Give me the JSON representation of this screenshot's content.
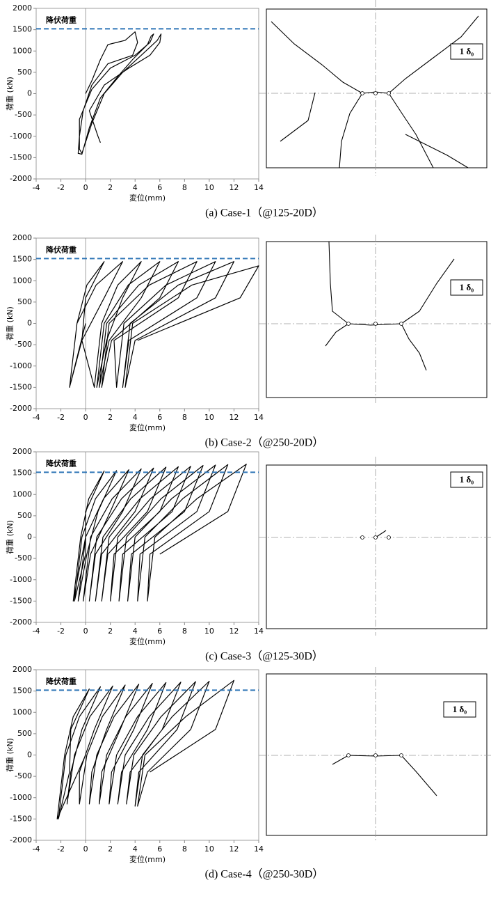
{
  "chart_data": [
    {
      "type": "line",
      "caption": "(a) Case-1（@125-20D）",
      "xlabel": "変位(mm)",
      "ylabel": "荷重 (kN)",
      "xlim": [
        -4,
        14
      ],
      "ylim": [
        -2000,
        2000
      ],
      "xticks": [
        -4,
        -2,
        0,
        2,
        4,
        6,
        8,
        10,
        12,
        14
      ],
      "yticks": [
        -2000,
        -1500,
        -1000,
        -500,
        0,
        500,
        1000,
        1500,
        2000
      ],
      "reference_line": {
        "value": 1520,
        "label": "降伏荷重",
        "color": "#2e75b6"
      },
      "color": "#000000",
      "x": [
        0,
        0.5,
        1.2,
        1.8,
        2.5,
        3.2,
        4.0,
        4.2,
        3.8,
        1.8,
        0.5,
        -0.2,
        -0.5,
        -0.6,
        -0.3,
        0.3,
        1.2,
        2.6,
        3.8,
        5,
        5.3,
        5.5,
        5.2,
        4,
        2,
        0.5,
        -0.5,
        -0.5,
        -0.3,
        0.5,
        1.5,
        3,
        4.5,
        5.8,
        6.1,
        6.0,
        5.2,
        3.5,
        1.5,
        0.3,
        1.0,
        1.2
      ],
      "values": [
        0,
        300,
        800,
        1150,
        1200,
        1250,
        1450,
        1200,
        900,
        700,
        200,
        -400,
        -1000,
        -1400,
        -1420,
        -800,
        -100,
        400,
        800,
        1150,
        1350,
        1400,
        1200,
        900,
        600,
        100,
        -600,
        -1300,
        -1400,
        -700,
        0,
        500,
        900,
        1250,
        1400,
        1200,
        900,
        600,
        200,
        -400,
        -1000,
        -1150
      ]
    },
    {
      "type": "line",
      "caption": "(b) Case-2（@250-20D）",
      "xlabel": "変位(mm)",
      "ylabel": "荷重 (kN)",
      "xlim": [
        -4,
        14
      ],
      "ylim": [
        -2000,
        2000
      ],
      "xticks": [
        -4,
        -2,
        0,
        2,
        4,
        6,
        8,
        10,
        12,
        14
      ],
      "yticks": [
        -2000,
        -1500,
        -1000,
        -500,
        0,
        500,
        1000,
        1500,
        2000
      ],
      "reference_line": {
        "value": 1520,
        "label": "降伏荷重",
        "color": "#2e75b6"
      },
      "color": "#000000",
      "x": [
        0,
        -1.3,
        -0.7,
        0.1,
        1.5,
        0,
        -0.3,
        -1.3,
        -0.7,
        0.85,
        3,
        1.5,
        -0.3,
        0.7,
        1.3,
        2.6,
        4.5,
        3,
        1.7,
        0.9,
        1.5,
        3.45,
        6,
        4.5,
        1.9,
        1.1,
        1.7,
        4.3,
        7.5,
        6,
        2.1,
        1.3,
        1.9,
        5.15,
        9,
        7.5,
        2.3,
        2.5,
        3.1,
        6.5,
        10.5,
        9,
        3.5,
        3,
        3.6,
        7.5,
        12,
        10.5,
        4,
        3.2,
        3.8,
        8.6,
        14,
        12.5,
        4.2
      ],
      "values": [
        0,
        -1500,
        0,
        900,
        1450,
        600,
        -400,
        -1500,
        0,
        900,
        1450,
        600,
        -400,
        -1500,
        0,
        900,
        1450,
        600,
        -400,
        -1500,
        0,
        900,
        1450,
        600,
        -400,
        -1500,
        0,
        900,
        1450,
        600,
        -400,
        -1500,
        0,
        900,
        1450,
        600,
        -400,
        -1500,
        0,
        900,
        1450,
        600,
        -400,
        -1500,
        0,
        900,
        1450,
        600,
        -400,
        -1500,
        0,
        900,
        1350,
        600,
        -400
      ]
    },
    {
      "type": "line",
      "caption": "(c) Case-3（@125-30D）",
      "xlabel": "変位(mm)",
      "ylabel": "荷重 (kN)",
      "xlim": [
        -4,
        14
      ],
      "ylim": [
        -2000,
        2000
      ],
      "xticks": [
        -4,
        -2,
        0,
        2,
        4,
        6,
        8,
        10,
        12,
        14
      ],
      "yticks": [
        -2000,
        -1500,
        -1000,
        -500,
        0,
        500,
        1000,
        1500,
        2000
      ],
      "reference_line": {
        "value": 1520,
        "label": "降伏荷重",
        "color": "#2e75b6"
      },
      "color": "#000000",
      "x": [
        0,
        -1,
        -0.4,
        0.25,
        1.5,
        0,
        0,
        -0.9,
        -0.3,
        0.8,
        2.5,
        1,
        0.1,
        -0.6,
        0,
        1.45,
        3.5,
        2,
        0.4,
        -0.2,
        0.4,
        2.15,
        4.5,
        3,
        0.8,
        0.3,
        0.9,
        2.9,
        5.5,
        4,
        1.3,
        0.8,
        1.4,
        3.65,
        6.5,
        5,
        1.8,
        1.3,
        1.9,
        4.4,
        7.5,
        6,
        2.3,
        2,
        2.6,
        5.25,
        8.5,
        7,
        3,
        2.7,
        3.3,
        6.1,
        9.5,
        8,
        3.7,
        3.4,
        4,
        6.95,
        10.5,
        9,
        4.4,
        4.2,
        4.8,
        7.85,
        11.5,
        10,
        5.2,
        5,
        5.6,
        9,
        13,
        11.5,
        6
      ],
      "values": [
        0,
        -1500,
        0,
        900,
        1550,
        600,
        -400,
        -1500,
        0,
        900,
        1560,
        600,
        -400,
        -1500,
        0,
        900,
        1580,
        600,
        -400,
        -1500,
        0,
        900,
        1600,
        600,
        -400,
        -1500,
        0,
        900,
        1620,
        600,
        -400,
        -1500,
        0,
        900,
        1640,
        600,
        -400,
        -1500,
        0,
        900,
        1650,
        600,
        -400,
        -1500,
        0,
        900,
        1660,
        600,
        -400,
        -1500,
        0,
        900,
        1680,
        600,
        -400,
        -1500,
        0,
        900,
        1690,
        600,
        -400,
        -1500,
        0,
        900,
        1700,
        600,
        -400,
        -1500,
        0,
        900,
        1710,
        600,
        -400
      ]
    },
    {
      "type": "line",
      "caption": "(d) Case-4（@250-30D）",
      "xlabel": "変位(mm)",
      "ylabel": "荷重 (kN)",
      "xlim": [
        -4,
        14
      ],
      "ylim": [
        -2000,
        2000
      ],
      "xticks": [
        -4,
        -2,
        0,
        2,
        4,
        6,
        8,
        10,
        12,
        14
      ],
      "yticks": [
        -2000,
        -1500,
        -1000,
        -500,
        0,
        500,
        1000,
        1500,
        2000
      ],
      "reference_line": {
        "value": 1520,
        "label": "降伏荷重",
        "color": "#2e75b6"
      },
      "color": "#000000",
      "x": [
        0,
        -2.3,
        -1.7,
        -1,
        0.3,
        -1.2,
        -1.3,
        -2.2,
        -1.6,
        -0.5,
        1.2,
        -0.3,
        -1.2,
        -1.5,
        -0.9,
        0.35,
        2.2,
        0.7,
        -0.5,
        -0.5,
        0.1,
        1.35,
        3.2,
        1.7,
        0.5,
        0.3,
        0.9,
        2.3,
        4.3,
        2.8,
        1.3,
        1.1,
        1.7,
        3.25,
        5.4,
        3.9,
        2.1,
        1.9,
        2.5,
        4.2,
        6.5,
        5,
        2.9,
        2.6,
        3.2,
        5.15,
        7.7,
        6.2,
        3.6,
        3.3,
        3.9,
        6.1,
        8.9,
        7.4,
        4.3,
        4,
        4.6,
        7,
        10,
        8.5,
        5,
        4.2,
        4.8,
        8.1,
        12,
        10.5,
        5.2
      ],
      "values": [
        0,
        -1500,
        0,
        900,
        1550,
        600,
        -400,
        -1500,
        0,
        900,
        1600,
        600,
        -400,
        -1150,
        0,
        900,
        1620,
        600,
        -400,
        -1150,
        0,
        900,
        1640,
        600,
        -400,
        -1150,
        0,
        900,
        1660,
        600,
        -400,
        -1150,
        0,
        900,
        1680,
        600,
        -400,
        -1150,
        0,
        900,
        1700,
        600,
        -400,
        -1150,
        0,
        900,
        1710,
        600,
        -400,
        -1150,
        0,
        900,
        1720,
        600,
        -400,
        -1200,
        0,
        900,
        1730,
        600,
        -400,
        -1200,
        0,
        900,
        1750,
        600,
        -400
      ]
    }
  ],
  "crack_diagrams": [
    {
      "label": "1 δ₀"
    },
    {
      "label": "1 δ₀"
    },
    {
      "label": "1 δ₀"
    },
    {
      "label": "1 δ₀"
    }
  ]
}
